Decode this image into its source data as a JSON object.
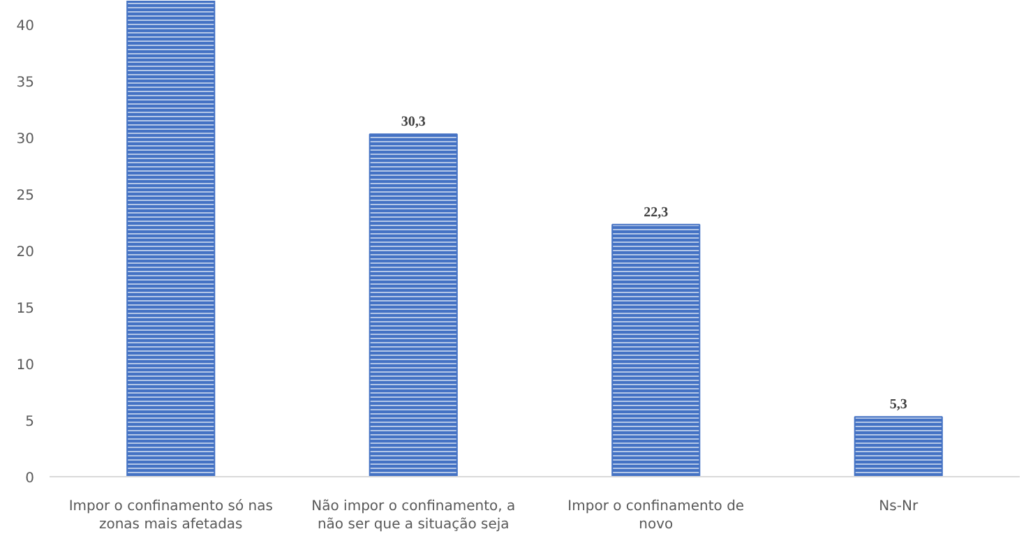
{
  "chart_data": {
    "type": "bar",
    "categories": [
      "Impor o confinamento só nas\nzonas mais afetadas",
      "Não impor o confinamento, a\nnão ser que a situação seja",
      "Impor o confinamento de\nnovo",
      "Ns-Nr"
    ],
    "values": [
      42.1,
      30.3,
      22.3,
      5.3
    ],
    "value_labels": [
      null,
      "30,3",
      "22,3",
      "5,3"
    ],
    "color": "#4472c4",
    "ylim": [
      0,
      42.1
    ],
    "yticks": [
      0,
      5,
      10,
      15,
      20,
      25,
      30,
      35,
      40
    ],
    "grid": false
  }
}
